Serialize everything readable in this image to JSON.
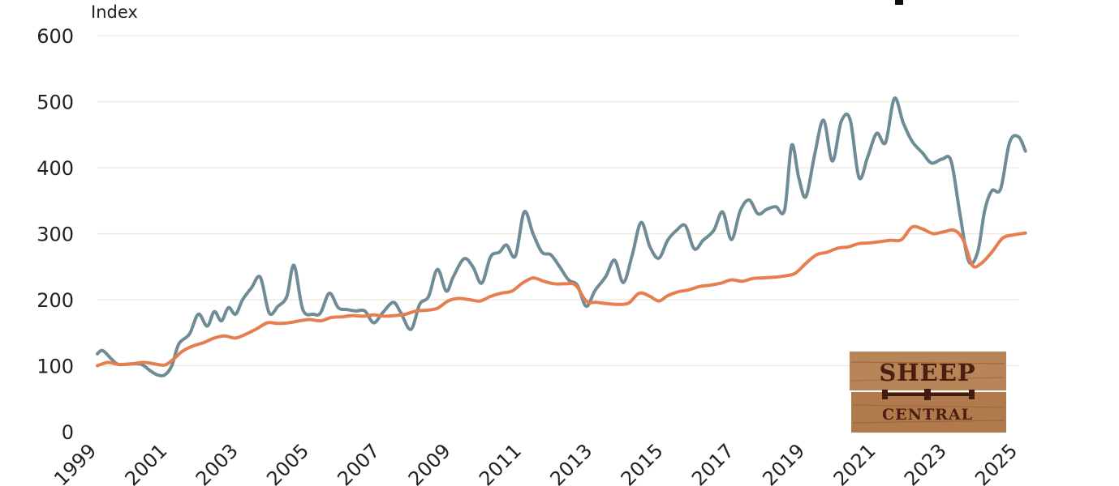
{
  "chart_data": {
    "type": "line",
    "ylabel": "Index",
    "ylim": [
      0,
      600
    ],
    "yticks": [
      0,
      100,
      200,
      300,
      400,
      500,
      600
    ],
    "xlim": [
      1999.0,
      2025.0
    ],
    "xticks": [
      "1999",
      "2001",
      "2003",
      "2005",
      "2007",
      "2009",
      "2011",
      "2013",
      "2015",
      "2017",
      "2019",
      "2021",
      "2023",
      "2025"
    ],
    "grid": true,
    "legend": "none",
    "colors": {
      "series_1": "#6f8c96",
      "series_2": "#e67e4f"
    },
    "series": [
      {
        "key": "series_1",
        "points": [
          [
            1999.0,
            118
          ],
          [
            1999.15,
            123
          ],
          [
            1999.4,
            110
          ],
          [
            1999.6,
            102
          ],
          [
            2000.0,
            103
          ],
          [
            2000.25,
            102
          ],
          [
            2000.5,
            92
          ],
          [
            2000.7,
            86
          ],
          [
            2000.9,
            86
          ],
          [
            2001.1,
            100
          ],
          [
            2001.3,
            133
          ],
          [
            2001.6,
            148
          ],
          [
            2001.85,
            178
          ],
          [
            2002.1,
            160
          ],
          [
            2002.3,
            182
          ],
          [
            2002.5,
            168
          ],
          [
            2002.7,
            188
          ],
          [
            2002.9,
            178
          ],
          [
            2003.1,
            200
          ],
          [
            2003.35,
            218
          ],
          [
            2003.6,
            234
          ],
          [
            2003.85,
            180
          ],
          [
            2004.1,
            190
          ],
          [
            2004.35,
            205
          ],
          [
            2004.55,
            252
          ],
          [
            2004.8,
            185
          ],
          [
            2005.1,
            178
          ],
          [
            2005.3,
            180
          ],
          [
            2005.55,
            210
          ],
          [
            2005.8,
            188
          ],
          [
            2006.05,
            185
          ],
          [
            2006.3,
            183
          ],
          [
            2006.55,
            183
          ],
          [
            2006.8,
            165
          ],
          [
            2007.05,
            180
          ],
          [
            2007.35,
            196
          ],
          [
            2007.55,
            182
          ],
          [
            2007.85,
            155
          ],
          [
            2008.1,
            193
          ],
          [
            2008.35,
            205
          ],
          [
            2008.6,
            246
          ],
          [
            2008.85,
            213
          ],
          [
            2009.05,
            235
          ],
          [
            2009.35,
            262
          ],
          [
            2009.6,
            250
          ],
          [
            2009.85,
            225
          ],
          [
            2010.1,
            265
          ],
          [
            2010.35,
            272
          ],
          [
            2010.55,
            283
          ],
          [
            2010.8,
            266
          ],
          [
            2011.05,
            333
          ],
          [
            2011.3,
            300
          ],
          [
            2011.55,
            272
          ],
          [
            2011.8,
            268
          ],
          [
            2012.05,
            250
          ],
          [
            2012.3,
            230
          ],
          [
            2012.55,
            222
          ],
          [
            2012.8,
            190
          ],
          [
            2013.05,
            214
          ],
          [
            2013.35,
            235
          ],
          [
            2013.6,
            260
          ],
          [
            2013.85,
            226
          ],
          [
            2014.1,
            268
          ],
          [
            2014.35,
            317
          ],
          [
            2014.6,
            280
          ],
          [
            2014.85,
            263
          ],
          [
            2015.1,
            290
          ],
          [
            2015.35,
            305
          ],
          [
            2015.6,
            312
          ],
          [
            2015.85,
            277
          ],
          [
            2016.1,
            290
          ],
          [
            2016.4,
            305
          ],
          [
            2016.65,
            333
          ],
          [
            2016.9,
            291
          ],
          [
            2017.15,
            335
          ],
          [
            2017.4,
            351
          ],
          [
            2017.65,
            330
          ],
          [
            2017.9,
            337
          ],
          [
            2018.15,
            341
          ],
          [
            2018.4,
            336
          ],
          [
            2018.6,
            434
          ],
          [
            2018.8,
            385
          ],
          [
            2019.0,
            356
          ],
          [
            2019.25,
            420
          ],
          [
            2019.5,
            472
          ],
          [
            2019.75,
            410
          ],
          [
            2020.0,
            470
          ],
          [
            2020.25,
            473
          ],
          [
            2020.5,
            385
          ],
          [
            2020.75,
            417
          ],
          [
            2021.0,
            452
          ],
          [
            2021.25,
            438
          ],
          [
            2021.5,
            505
          ],
          [
            2021.75,
            468
          ],
          [
            2022.0,
            440
          ],
          [
            2022.3,
            422
          ],
          [
            2022.55,
            407
          ],
          [
            2022.85,
            413
          ],
          [
            2023.1,
            410
          ],
          [
            2023.35,
            330
          ],
          [
            2023.6,
            258
          ],
          [
            2023.85,
            272
          ],
          [
            2024.05,
            335
          ],
          [
            2024.25,
            365
          ],
          [
            2024.5,
            368
          ],
          [
            2024.75,
            438
          ],
          [
            2025.0,
            447
          ],
          [
            2025.2,
            425
          ]
        ]
      },
      {
        "key": "series_2",
        "points": [
          [
            1999.0,
            100
          ],
          [
            1999.3,
            105
          ],
          [
            1999.6,
            102
          ],
          [
            2000.0,
            103
          ],
          [
            2000.3,
            105
          ],
          [
            2000.6,
            103
          ],
          [
            2000.9,
            101
          ],
          [
            2001.15,
            110
          ],
          [
            2001.4,
            122
          ],
          [
            2001.7,
            130
          ],
          [
            2002.0,
            135
          ],
          [
            2002.3,
            142
          ],
          [
            2002.6,
            145
          ],
          [
            2002.9,
            142
          ],
          [
            2003.2,
            148
          ],
          [
            2003.5,
            156
          ],
          [
            2003.8,
            165
          ],
          [
            2004.1,
            164
          ],
          [
            2004.4,
            165
          ],
          [
            2004.7,
            168
          ],
          [
            2005.0,
            170
          ],
          [
            2005.3,
            168
          ],
          [
            2005.6,
            173
          ],
          [
            2005.9,
            174
          ],
          [
            2006.2,
            176
          ],
          [
            2006.5,
            175
          ],
          [
            2006.8,
            177
          ],
          [
            2007.1,
            175
          ],
          [
            2007.4,
            176
          ],
          [
            2007.7,
            178
          ],
          [
            2008.0,
            183
          ],
          [
            2008.3,
            184
          ],
          [
            2008.6,
            187
          ],
          [
            2008.9,
            198
          ],
          [
            2009.2,
            202
          ],
          [
            2009.5,
            200
          ],
          [
            2009.8,
            198
          ],
          [
            2010.1,
            205
          ],
          [
            2010.4,
            210
          ],
          [
            2010.7,
            213
          ],
          [
            2011.0,
            225
          ],
          [
            2011.3,
            233
          ],
          [
            2011.6,
            228
          ],
          [
            2011.9,
            224
          ],
          [
            2012.2,
            224
          ],
          [
            2012.5,
            222
          ],
          [
            2012.8,
            198
          ],
          [
            2013.1,
            196
          ],
          [
            2013.4,
            194
          ],
          [
            2013.7,
            193
          ],
          [
            2014.0,
            195
          ],
          [
            2014.3,
            210
          ],
          [
            2014.6,
            205
          ],
          [
            2014.85,
            198
          ],
          [
            2015.1,
            206
          ],
          [
            2015.4,
            212
          ],
          [
            2015.7,
            215
          ],
          [
            2016.0,
            220
          ],
          [
            2016.3,
            222
          ],
          [
            2016.6,
            225
          ],
          [
            2016.9,
            230
          ],
          [
            2017.2,
            228
          ],
          [
            2017.5,
            232
          ],
          [
            2017.8,
            233
          ],
          [
            2018.1,
            234
          ],
          [
            2018.4,
            236
          ],
          [
            2018.7,
            240
          ],
          [
            2019.0,
            255
          ],
          [
            2019.3,
            268
          ],
          [
            2019.6,
            272
          ],
          [
            2019.9,
            278
          ],
          [
            2020.2,
            280
          ],
          [
            2020.5,
            285
          ],
          [
            2020.8,
            286
          ],
          [
            2021.1,
            288
          ],
          [
            2021.4,
            290
          ],
          [
            2021.7,
            291
          ],
          [
            2022.0,
            310
          ],
          [
            2022.3,
            307
          ],
          [
            2022.6,
            300
          ],
          [
            2022.9,
            303
          ],
          [
            2023.2,
            305
          ],
          [
            2023.45,
            290
          ],
          [
            2023.7,
            252
          ],
          [
            2023.95,
            255
          ],
          [
            2024.25,
            272
          ],
          [
            2024.55,
            293
          ],
          [
            2024.85,
            298
          ],
          [
            2025.2,
            301
          ]
        ]
      }
    ]
  },
  "logo": {
    "line1": "SHEEP",
    "line2": "CENTRAL"
  }
}
